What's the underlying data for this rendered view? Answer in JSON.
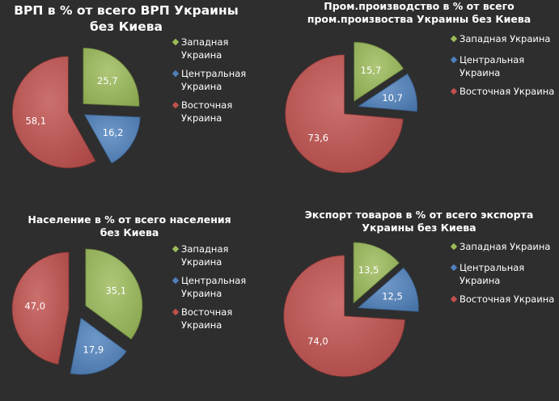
{
  "legend_labels": [
    "Западная Украина",
    "Центральная Украина",
    "Восточная Украина"
  ],
  "colors": [
    "#9bbb59",
    "#4f81bd",
    "#c0504d"
  ],
  "chart_data": [
    {
      "type": "pie",
      "title_lines": [
        "ВРП в % от всего ВРП Украины",
        "без Киева"
      ],
      "categories": [
        "Западная Украина",
        "Центральная Украина",
        "Восточная Украина"
      ],
      "values": [
        25.7,
        16.2,
        58.1
      ],
      "data_labels": [
        "25,7",
        "16,2",
        "58,1"
      ],
      "legend_lines": [
        [
          "Западная",
          "Украина"
        ],
        [
          "Центральная",
          "Украина"
        ],
        [
          "Восточная",
          "Украина"
        ]
      ]
    },
    {
      "type": "pie",
      "title_lines": [
        "Пром.производство в % от всего",
        "пром.произвоства Украины без Киева"
      ],
      "categories": [
        "Западная Украина",
        "Центральная Украина",
        "Восточная Украина"
      ],
      "values": [
        15.7,
        10.7,
        73.6
      ],
      "data_labels": [
        "15,7",
        "10,7",
        "73,6"
      ],
      "legend_lines": [
        [
          "Западная Украина"
        ],
        [
          "Центральная",
          "Украина"
        ],
        [
          "Восточная Украина"
        ]
      ]
    },
    {
      "type": "pie",
      "title_lines": [
        "Население в % от всего населения",
        "без Киева"
      ],
      "categories": [
        "Западная Украина",
        "Центральная Украина",
        "Восточная Украина"
      ],
      "values": [
        35.1,
        17.9,
        47.0
      ],
      "data_labels": [
        "35,1",
        "17,9",
        "47,0"
      ],
      "legend_lines": [
        [
          "Западная",
          "Украина"
        ],
        [
          "Центральная",
          "Украина"
        ],
        [
          "Восточная",
          "Украина"
        ]
      ]
    },
    {
      "type": "pie",
      "title_lines": [
        "Экспорт товаров в % от всего экспорта",
        "Украины без Киева"
      ],
      "categories": [
        "Западная Украина",
        "Центральная Украина",
        "Восточная Украина"
      ],
      "values": [
        13.5,
        12.5,
        74.0
      ],
      "data_labels": [
        "13,5",
        "12,5",
        "74,0"
      ],
      "legend_lines": [
        [
          "Западная Украина"
        ],
        [
          "Центральная",
          "Украина"
        ],
        [
          "Восточная Украина"
        ]
      ]
    }
  ]
}
